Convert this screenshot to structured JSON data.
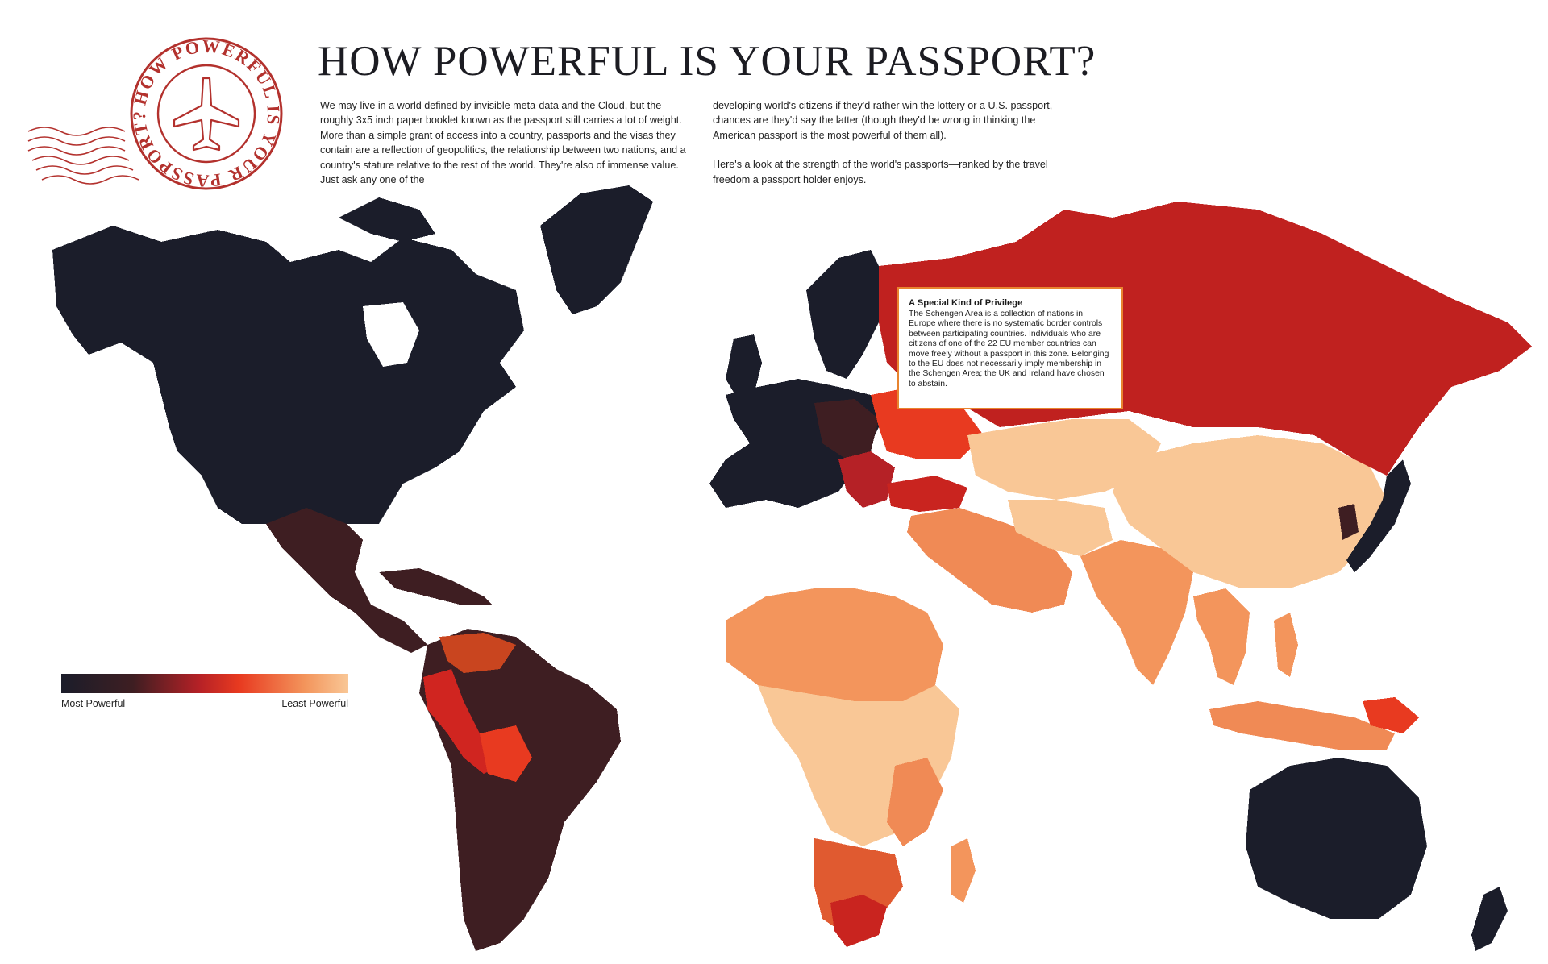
{
  "header": {
    "title": "HOW POWERFUL IS YOUR PASSPORT?",
    "stamp_text": "HOW POWERFUL IS YOUR PASSPORT?"
  },
  "intro": {
    "left_paragraph": "We may live in a world defined by invisible meta-data and the Cloud, but the roughly 3x5 inch paper booklet known as the passport still carries a lot of weight. More than a simple grant of access into a country, passports and the visas they contain are a reflection of geopolitics, the relationship between two nations, and a country's stature relative to the rest of the world. They're also of immense value. Just ask any one of the",
    "right_paragraph_1": "developing world's citizens if they'd rather win the lottery or a U.S. passport, chances are they'd say the latter (though they'd be wrong in thinking the American passport is the most powerful of them all).",
    "right_paragraph_2": "Here's a look at the strength of the world's passports—ranked by the travel freedom a passport holder enjoys."
  },
  "callout": {
    "title": "A Special Kind of Privilege",
    "body": "The Schengen Area is a collection of nations in Europe where there is no systematic border controls between participating countries. Individuals who are citizens of one of the 22 EU member countries can move freely without a passport in this zone. Belonging to the EU does not necessarily imply membership in the Schengen Area; the UK and Ireland have chosen to abstain."
  },
  "legend": {
    "min_label": "Most Powerful",
    "max_label": "Least Powerful",
    "colors": [
      "#1b1d2a",
      "#3e1e22",
      "#b52126",
      "#e83a20",
      "#f3955c",
      "#f9c796"
    ]
  },
  "palette": {
    "ocean": "#ffffff",
    "stamp": "#b3312d",
    "callout_border": "#e8842f"
  },
  "regions": [
    {
      "name": "North America",
      "level": 1
    },
    {
      "name": "Greenland",
      "level": 1
    },
    {
      "name": "Mexico and Central America",
      "level": 2
    },
    {
      "name": "Caribbean",
      "level": 2
    },
    {
      "name": "South America",
      "level": 2
    },
    {
      "name": "Andean countries",
      "level": 3
    },
    {
      "name": "Western Europe",
      "level": 1
    },
    {
      "name": "Eastern Europe",
      "level": 3
    },
    {
      "name": "Russia",
      "level": 3
    },
    {
      "name": "North Africa",
      "level": 5
    },
    {
      "name": "Sub-Saharan Africa",
      "level": 6
    },
    {
      "name": "Southern Africa",
      "level": 4
    },
    {
      "name": "Middle East",
      "level": 5
    },
    {
      "name": "Central Asia",
      "level": 6
    },
    {
      "name": "South Asia",
      "level": 5
    },
    {
      "name": "China and Mongolia",
      "level": 6
    },
    {
      "name": "Japan and Korea",
      "level": 1
    },
    {
      "name": "Southeast Asia",
      "level": 5
    },
    {
      "name": "Australia",
      "level": 1
    },
    {
      "name": "New Zealand",
      "level": 1
    }
  ]
}
